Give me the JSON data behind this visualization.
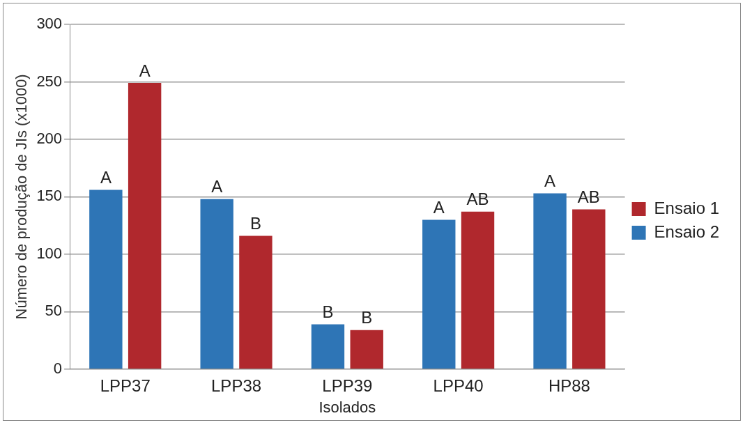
{
  "chart_data": {
    "type": "bar",
    "categories": [
      "LPP37",
      "LPP38",
      "LPP39",
      "LPP40",
      "HP88"
    ],
    "xlabel": "Isolados",
    "ylabel": "Número de produção de JIs (x1000)",
    "series": [
      {
        "name": "Ensaio 2",
        "color": "#2e75b6",
        "values": [
          156,
          148,
          39,
          130,
          153
        ],
        "value_labels": [
          "A",
          "A",
          "B",
          "A",
          "A"
        ]
      },
      {
        "name": "Ensaio 1",
        "color": "#b0282d",
        "values": [
          249,
          116,
          34,
          137,
          139
        ],
        "value_labels": [
          "A",
          "B",
          "B",
          "AB",
          "AB"
        ]
      }
    ],
    "ylim": [
      0,
      300
    ],
    "yticks": [
      0,
      50,
      100,
      150,
      200,
      250,
      300
    ],
    "grid": "y",
    "legend": "right"
  }
}
